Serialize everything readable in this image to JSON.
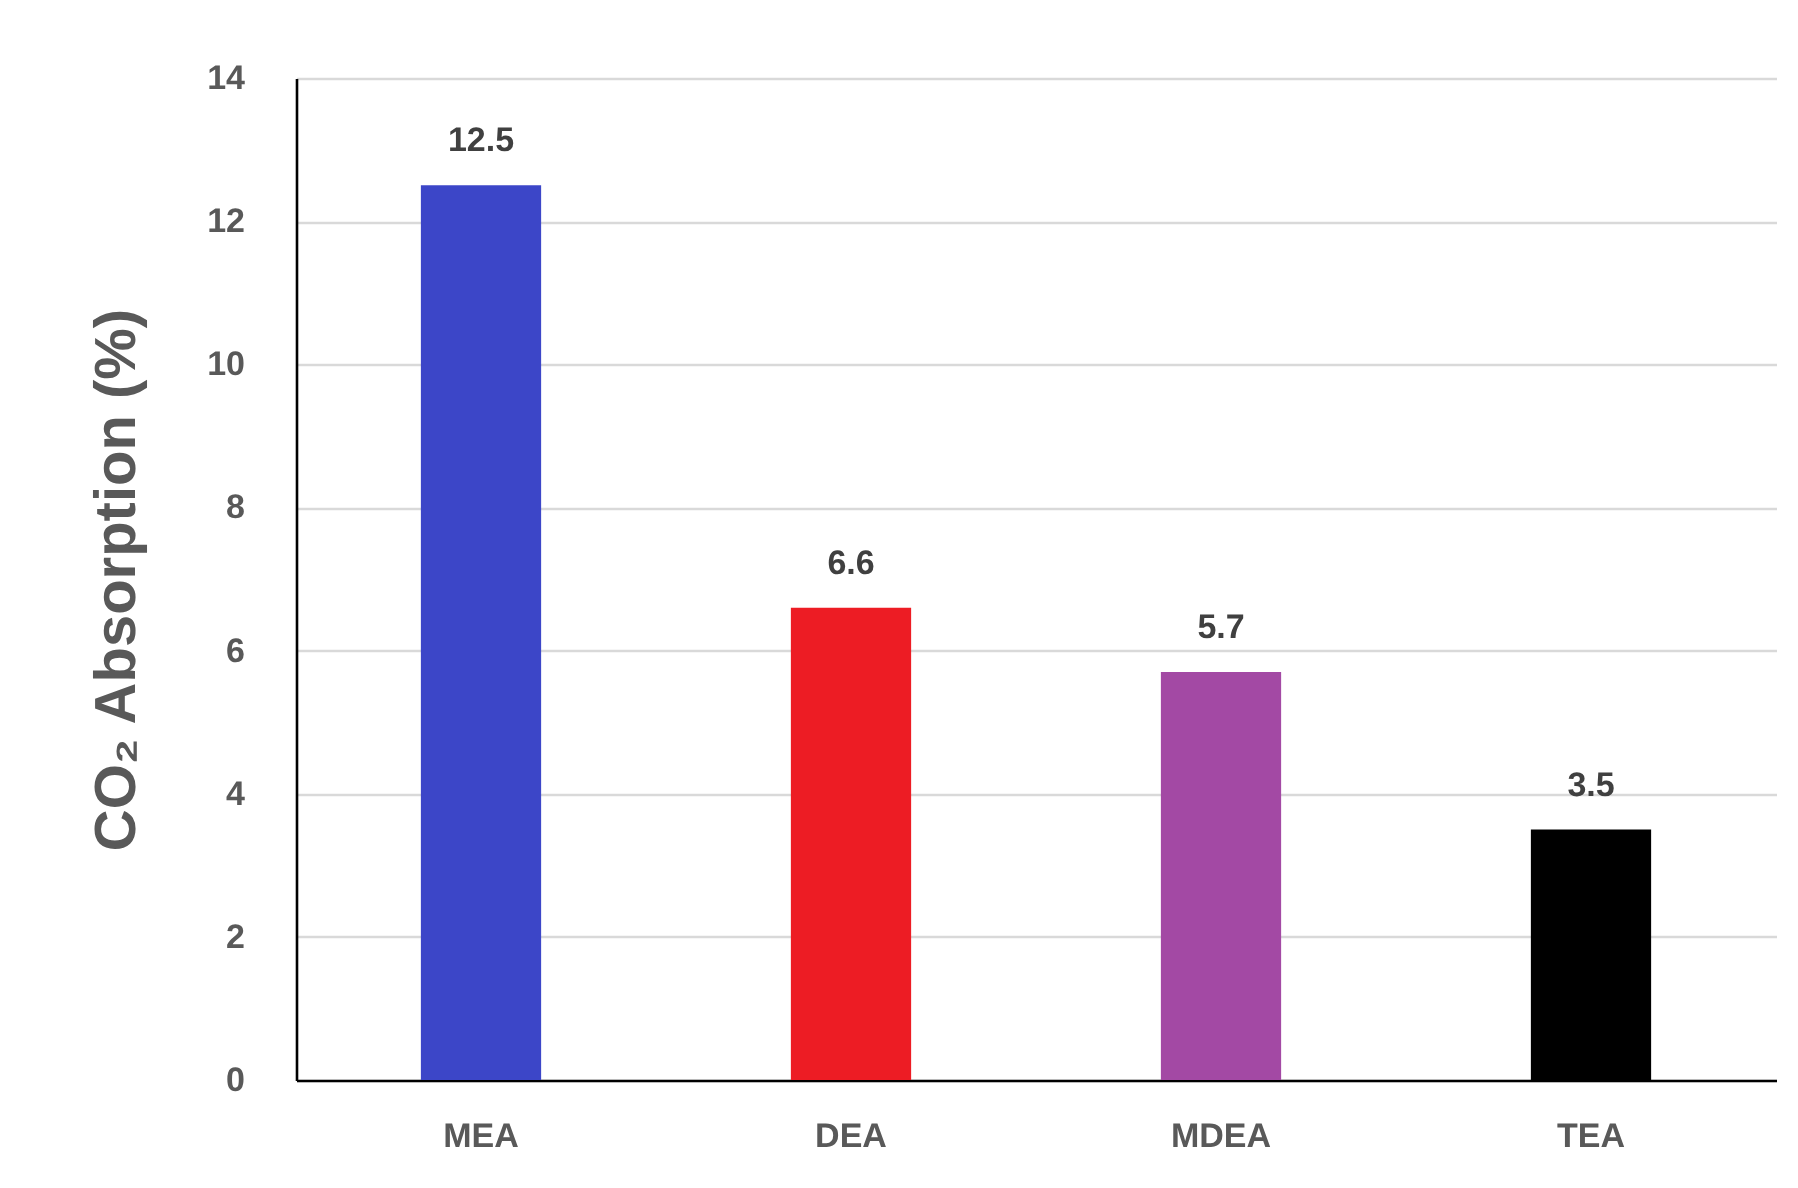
{
  "chart_data": {
    "type": "bar",
    "ylabel": "CO₂ Absorption (%)",
    "categories": [
      "MEA",
      "DEA",
      "MDEA",
      "TEA"
    ],
    "values": [
      12.5,
      6.6,
      5.7,
      3.5
    ],
    "colors": [
      "#3c46c8",
      "#ed1c24",
      "#a349a4",
      "#000000"
    ],
    "ylim": [
      0,
      14
    ],
    "yticks": [
      0,
      2,
      4,
      6,
      8,
      10,
      12,
      14
    ],
    "grid": "y",
    "data_labels": true
  }
}
